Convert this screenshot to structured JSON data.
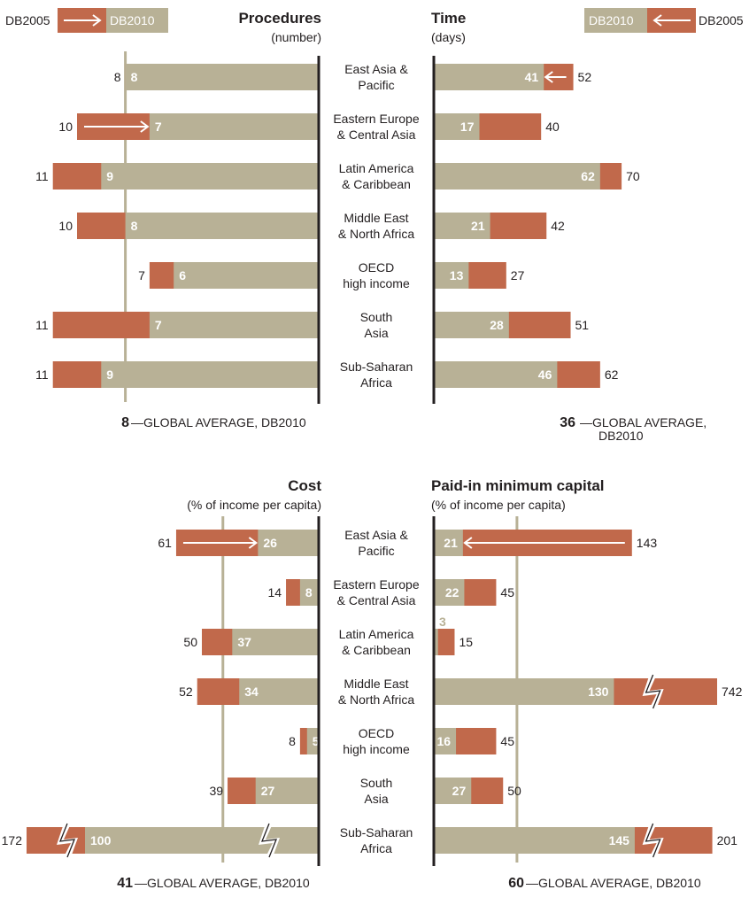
{
  "colors": {
    "db2010": "#b8b196",
    "db2005": "#c1694b",
    "axis": "#231f20",
    "text": "#231f20",
    "average_line": "#b8b196"
  },
  "legend": {
    "left": {
      "from": "DB2005",
      "to": "DB2010"
    },
    "right": {
      "from": "DB2010",
      "to": "DB2005"
    }
  },
  "regions": [
    [
      "East Asia &",
      "Pacific"
    ],
    [
      "Eastern Europe",
      "& Central Asia"
    ],
    [
      "Latin America",
      "& Caribbean"
    ],
    [
      "Middle East",
      "& North Africa"
    ],
    [
      "OECD",
      "high income"
    ],
    [
      "South",
      "Asia"
    ],
    [
      "Sub-Saharan",
      "Africa"
    ]
  ],
  "chart_data": [
    {
      "type": "bar",
      "title": "Procedures",
      "subtitle": "(number)",
      "series": [
        {
          "name": "DB2005",
          "values": [
            8,
            10,
            11,
            10,
            7,
            11,
            11
          ]
        },
        {
          "name": "DB2010",
          "values": [
            8,
            7,
            9,
            8,
            6,
            7,
            9
          ]
        }
      ],
      "global_average": {
        "value": "8",
        "label": "GLOBAL AVERAGE, DB2010"
      }
    },
    {
      "type": "bar",
      "title": "Time",
      "subtitle": "(days)",
      "series": [
        {
          "name": "DB2005",
          "values": [
            52,
            40,
            70,
            42,
            27,
            51,
            62
          ]
        },
        {
          "name": "DB2010",
          "values": [
            41,
            17,
            62,
            21,
            13,
            28,
            46
          ]
        }
      ],
      "global_average": {
        "value": "36",
        "label": "GLOBAL AVERAGE,",
        "label2": "DB2010"
      }
    },
    {
      "type": "bar",
      "title": "Cost",
      "subtitle": "(% of income per capita)",
      "series": [
        {
          "name": "DB2005",
          "values": [
            61,
            14,
            50,
            52,
            8,
            39,
            172
          ]
        },
        {
          "name": "DB2010",
          "values": [
            26,
            8,
            37,
            34,
            5,
            27,
            100
          ]
        }
      ],
      "global_average": {
        "value": "41",
        "label": "GLOBAL AVERAGE, DB2010"
      }
    },
    {
      "type": "bar",
      "title": "Paid-in minimum capital",
      "subtitle": "(% of income per capita)",
      "series": [
        {
          "name": "DB2005",
          "values": [
            143,
            45,
            15,
            742,
            45,
            50,
            201
          ]
        },
        {
          "name": "DB2010",
          "values": [
            21,
            22,
            3,
            130,
            16,
            27,
            145
          ]
        }
      ],
      "global_average": {
        "value": "60",
        "label": "GLOBAL AVERAGE, DB2010"
      }
    }
  ]
}
